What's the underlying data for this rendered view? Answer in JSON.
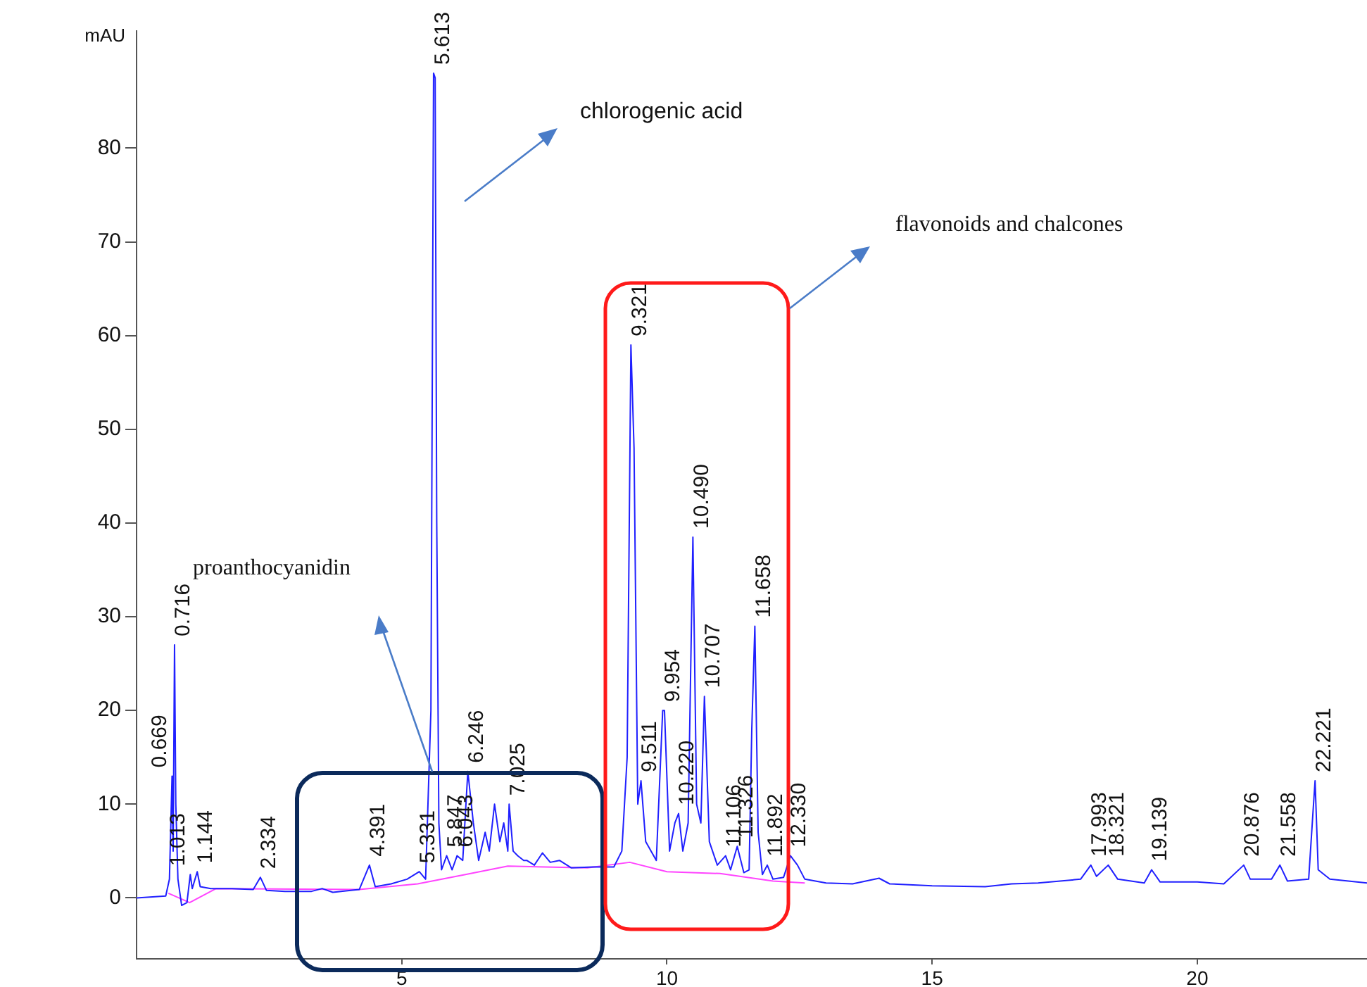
{
  "chart_data": {
    "type": "line",
    "ylabel": "mAU",
    "xlim": [
      0,
      23.2
    ],
    "xticks": [
      5,
      10,
      15,
      20
    ],
    "ylim": [
      -6.5,
      92.5
    ],
    "yticks": [
      0,
      10,
      20,
      30,
      40,
      50,
      60,
      70,
      80
    ],
    "legend": false,
    "marker": "none",
    "line_style": "solid",
    "series": [
      {
        "color": "#2020ff",
        "x": [
          0,
          0.55,
          0.62,
          0.669,
          0.69,
          0.716,
          0.74,
          0.78,
          0.85,
          0.95,
          1.013,
          1.05,
          1.144,
          1.2,
          1.4,
          1.8,
          2.2,
          2.334,
          2.45,
          2.8,
          3.3,
          3.5,
          3.7,
          4.2,
          4.391,
          4.5,
          4.8,
          5.1,
          5.331,
          5.45,
          5.55,
          5.6,
          5.63,
          5.66,
          5.7,
          5.75,
          5.847,
          5.95,
          6.043,
          6.15,
          6.246,
          6.35,
          6.45,
          6.573,
          6.65,
          6.75,
          6.85,
          6.923,
          7.0,
          7.025,
          7.1,
          7.186,
          7.3,
          7.357,
          7.5,
          7.654,
          7.8,
          7.974,
          8.2,
          8.6,
          9.0,
          9.15,
          9.25,
          9.321,
          9.38,
          9.45,
          9.511,
          9.6,
          9.8,
          9.92,
          9.954,
          10.05,
          10.15,
          10.22,
          10.3,
          10.4,
          10.45,
          10.49,
          10.56,
          10.64,
          10.707,
          10.8,
          10.95,
          11.106,
          11.2,
          11.326,
          11.45,
          11.55,
          11.6,
          11.658,
          11.72,
          11.8,
          11.892,
          12.0,
          12.2,
          12.33,
          12.462,
          12.6,
          13,
          13.5,
          14,
          14.2,
          15,
          16,
          16.5,
          17,
          17.8,
          17.993,
          18.1,
          18.321,
          18.5,
          19.0,
          19.139,
          19.3,
          20,
          20.5,
          20.876,
          21.0,
          21.4,
          21.558,
          21.7,
          22.1,
          22.18,
          22.221,
          22.28,
          22.5,
          23.2
        ],
        "values": [
          0,
          0.2,
          2,
          13,
          5,
          27,
          10,
          2,
          -0.8,
          -0.5,
          2.5,
          1,
          2.8,
          1.2,
          1,
          1,
          0.9,
          2.2,
          0.8,
          0.7,
          0.7,
          1,
          0.6,
          0.9,
          3.5,
          1.2,
          1.5,
          2,
          2.8,
          2,
          20,
          88,
          87.5,
          40,
          8,
          3,
          4.5,
          3,
          4.5,
          4,
          13.5,
          8,
          4,
          7,
          5,
          10,
          6,
          8,
          5,
          10,
          5,
          4.5,
          4,
          4,
          3.5,
          4.8,
          3.8,
          4,
          3.2,
          3.3,
          3.3,
          5,
          15,
          59,
          48,
          10,
          12.5,
          6,
          4,
          20,
          20,
          5,
          8,
          9,
          5,
          8,
          25,
          38.5,
          10,
          8,
          21.5,
          6,
          3.5,
          4.5,
          3,
          5.5,
          2.7,
          3,
          18,
          29,
          7,
          2.5,
          3.5,
          2,
          2.2,
          4.5,
          3.5,
          2,
          1.6,
          1.5,
          2.1,
          1.5,
          1.3,
          1.2,
          1.5,
          1.6,
          2,
          3.5,
          2.3,
          3.5,
          2,
          1.6,
          3,
          1.7,
          1.7,
          1.5,
          3.5,
          2,
          2,
          3.5,
          1.8,
          2,
          9,
          12.5,
          3,
          2,
          1.6
        ]
      },
      {
        "color": "#ff44ff",
        "x": [
          0.6,
          1.0,
          1.5,
          4.2,
          5.3,
          6.2,
          7.0,
          8.5,
          9.3,
          10.0,
          11.0,
          12.0,
          12.6
        ],
        "values": [
          0.5,
          -0.5,
          1,
          0.9,
          1.5,
          2.5,
          3.4,
          3.2,
          3.8,
          2.8,
          2.6,
          1.8,
          1.6
        ]
      }
    ],
    "annotations": [
      {
        "text": "0.669",
        "x": 0.669,
        "y": 13
      },
      {
        "text": "0.716",
        "x": 0.716,
        "y": 27
      },
      {
        "text": "1.013",
        "x": 1.013,
        "y": 2.5
      },
      {
        "text": "1.144",
        "x": 1.144,
        "y": 2.8
      },
      {
        "text": "2.334",
        "x": 2.334,
        "y": 2.2
      },
      {
        "text": "4.391",
        "x": 4.391,
        "y": 3.5
      },
      {
        "text": "5.331",
        "x": 5.331,
        "y": 2.8
      },
      {
        "text": "5.613",
        "x": 5.613,
        "y": 88
      },
      {
        "text": "5.847",
        "x": 5.847,
        "y": 4.5
      },
      {
        "text": "6.043",
        "x": 6.043,
        "y": 4.5
      },
      {
        "text": "6.246",
        "x": 6.246,
        "y": 13.5
      },
      {
        "text": "7.025",
        "x": 7.025,
        "y": 10
      },
      {
        "text": "9.321",
        "x": 9.321,
        "y": 59
      },
      {
        "text": "9.511",
        "x": 9.511,
        "y": 12.5
      },
      {
        "text": "9.954",
        "x": 9.954,
        "y": 20
      },
      {
        "text": "10.220",
        "x": 10.22,
        "y": 9
      },
      {
        "text": "10.490",
        "x": 10.49,
        "y": 38.5
      },
      {
        "text": "10.707",
        "x": 10.707,
        "y": 21.5
      },
      {
        "text": "11.106",
        "x": 11.106,
        "y": 4.5
      },
      {
        "text": "11.326",
        "x": 11.326,
        "y": 5.5
      },
      {
        "text": "11.658",
        "x": 11.658,
        "y": 29
      },
      {
        "text": "11.892",
        "x": 11.892,
        "y": 3.5
      },
      {
        "text": "12.330",
        "x": 12.33,
        "y": 4.5
      },
      {
        "text": "17.993",
        "x": 17.993,
        "y": 3.5
      },
      {
        "text": "18.321",
        "x": 18.321,
        "y": 3.5
      },
      {
        "text": "19.139",
        "x": 19.139,
        "y": 3
      },
      {
        "text": "20.876",
        "x": 20.876,
        "y": 3.5
      },
      {
        "text": "21.558",
        "x": 21.558,
        "y": 3.5
      },
      {
        "text": "22.221",
        "x": 22.221,
        "y": 12.5
      },
      "chlorogenic acid",
      "flavonoids and chalcones",
      "proanthocyanidin"
    ]
  }
}
